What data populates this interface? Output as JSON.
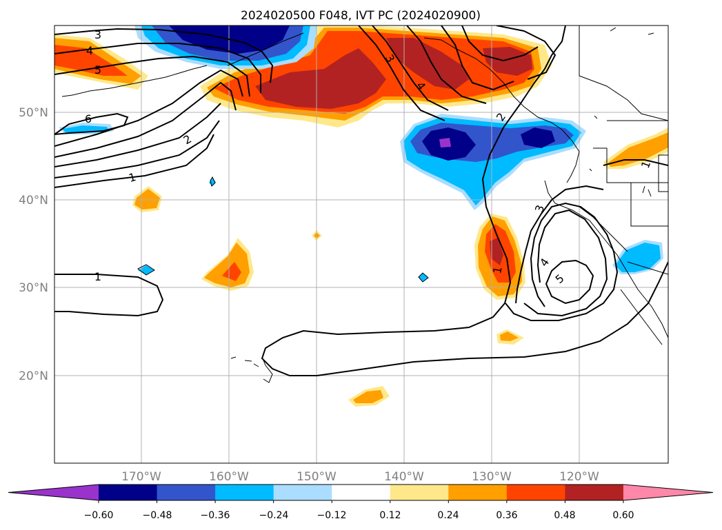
{
  "title": "2024020500 F048, IVT PC (2024020900)",
  "lat_labels": [
    "50°N",
    "40°N",
    "30°N",
    "20°N"
  ],
  "lon_labels": [
    "170°W",
    "160°W",
    "150°W",
    "140°W",
    "130°W",
    "120°W"
  ],
  "colorbar": {
    "ticks": [
      "−0.60",
      "−0.48",
      "−0.36",
      "−0.24",
      "−0.12",
      "0.12",
      "0.24",
      "0.36",
      "0.48",
      "0.60"
    ],
    "colors": [
      "#9933cc",
      "#000088",
      "#3355cc",
      "#00bbff",
      "#aaddff",
      "#ffffff",
      "#ffe88a",
      "#ff9f00",
      "#ff4400",
      "#b22222",
      "#ff88aa"
    ]
  },
  "contour_labels": [
    "3",
    "4",
    "5",
    "6",
    "2",
    "1",
    "1",
    "3",
    "4",
    "2",
    "1",
    "3",
    "4",
    "5",
    "1"
  ]
}
